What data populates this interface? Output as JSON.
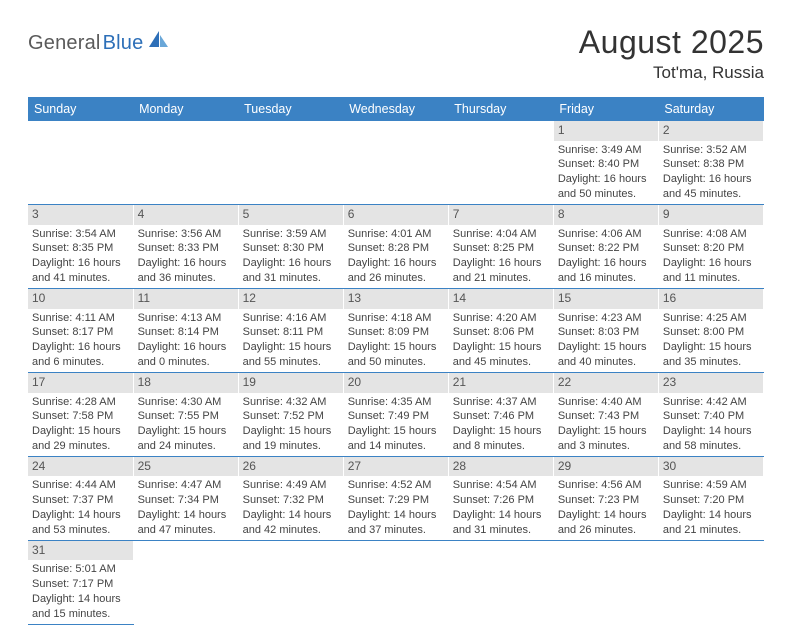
{
  "logo": {
    "text1": "General",
    "text2": "Blue"
  },
  "title": "August 2025",
  "location": "Tot'ma, Russia",
  "header_bg": "#3b82c4",
  "dayname_bg": "#e4e4e4",
  "border_color": "#3b82c4",
  "weekdays": [
    "Sunday",
    "Monday",
    "Tuesday",
    "Wednesday",
    "Thursday",
    "Friday",
    "Saturday"
  ],
  "weeks": [
    [
      null,
      null,
      null,
      null,
      null,
      {
        "n": "1",
        "sr": "3:49 AM",
        "ss": "8:40 PM",
        "dl": "16 hours and 50 minutes."
      },
      {
        "n": "2",
        "sr": "3:52 AM",
        "ss": "8:38 PM",
        "dl": "16 hours and 45 minutes."
      }
    ],
    [
      {
        "n": "3",
        "sr": "3:54 AM",
        "ss": "8:35 PM",
        "dl": "16 hours and 41 minutes."
      },
      {
        "n": "4",
        "sr": "3:56 AM",
        "ss": "8:33 PM",
        "dl": "16 hours and 36 minutes."
      },
      {
        "n": "5",
        "sr": "3:59 AM",
        "ss": "8:30 PM",
        "dl": "16 hours and 31 minutes."
      },
      {
        "n": "6",
        "sr": "4:01 AM",
        "ss": "8:28 PM",
        "dl": "16 hours and 26 minutes."
      },
      {
        "n": "7",
        "sr": "4:04 AM",
        "ss": "8:25 PM",
        "dl": "16 hours and 21 minutes."
      },
      {
        "n": "8",
        "sr": "4:06 AM",
        "ss": "8:22 PM",
        "dl": "16 hours and 16 minutes."
      },
      {
        "n": "9",
        "sr": "4:08 AM",
        "ss": "8:20 PM",
        "dl": "16 hours and 11 minutes."
      }
    ],
    [
      {
        "n": "10",
        "sr": "4:11 AM",
        "ss": "8:17 PM",
        "dl": "16 hours and 6 minutes."
      },
      {
        "n": "11",
        "sr": "4:13 AM",
        "ss": "8:14 PM",
        "dl": "16 hours and 0 minutes."
      },
      {
        "n": "12",
        "sr": "4:16 AM",
        "ss": "8:11 PM",
        "dl": "15 hours and 55 minutes."
      },
      {
        "n": "13",
        "sr": "4:18 AM",
        "ss": "8:09 PM",
        "dl": "15 hours and 50 minutes."
      },
      {
        "n": "14",
        "sr": "4:20 AM",
        "ss": "8:06 PM",
        "dl": "15 hours and 45 minutes."
      },
      {
        "n": "15",
        "sr": "4:23 AM",
        "ss": "8:03 PM",
        "dl": "15 hours and 40 minutes."
      },
      {
        "n": "16",
        "sr": "4:25 AM",
        "ss": "8:00 PM",
        "dl": "15 hours and 35 minutes."
      }
    ],
    [
      {
        "n": "17",
        "sr": "4:28 AM",
        "ss": "7:58 PM",
        "dl": "15 hours and 29 minutes."
      },
      {
        "n": "18",
        "sr": "4:30 AM",
        "ss": "7:55 PM",
        "dl": "15 hours and 24 minutes."
      },
      {
        "n": "19",
        "sr": "4:32 AM",
        "ss": "7:52 PM",
        "dl": "15 hours and 19 minutes."
      },
      {
        "n": "20",
        "sr": "4:35 AM",
        "ss": "7:49 PM",
        "dl": "15 hours and 14 minutes."
      },
      {
        "n": "21",
        "sr": "4:37 AM",
        "ss": "7:46 PM",
        "dl": "15 hours and 8 minutes."
      },
      {
        "n": "22",
        "sr": "4:40 AM",
        "ss": "7:43 PM",
        "dl": "15 hours and 3 minutes."
      },
      {
        "n": "23",
        "sr": "4:42 AM",
        "ss": "7:40 PM",
        "dl": "14 hours and 58 minutes."
      }
    ],
    [
      {
        "n": "24",
        "sr": "4:44 AM",
        "ss": "7:37 PM",
        "dl": "14 hours and 53 minutes."
      },
      {
        "n": "25",
        "sr": "4:47 AM",
        "ss": "7:34 PM",
        "dl": "14 hours and 47 minutes."
      },
      {
        "n": "26",
        "sr": "4:49 AM",
        "ss": "7:32 PM",
        "dl": "14 hours and 42 minutes."
      },
      {
        "n": "27",
        "sr": "4:52 AM",
        "ss": "7:29 PM",
        "dl": "14 hours and 37 minutes."
      },
      {
        "n": "28",
        "sr": "4:54 AM",
        "ss": "7:26 PM",
        "dl": "14 hours and 31 minutes."
      },
      {
        "n": "29",
        "sr": "4:56 AM",
        "ss": "7:23 PM",
        "dl": "14 hours and 26 minutes."
      },
      {
        "n": "30",
        "sr": "4:59 AM",
        "ss": "7:20 PM",
        "dl": "14 hours and 21 minutes."
      }
    ],
    [
      {
        "n": "31",
        "sr": "5:01 AM",
        "ss": "7:17 PM",
        "dl": "14 hours and 15 minutes."
      },
      null,
      null,
      null,
      null,
      null,
      null
    ]
  ],
  "labels": {
    "sunrise": "Sunrise: ",
    "sunset": "Sunset: ",
    "daylight": "Daylight: "
  }
}
